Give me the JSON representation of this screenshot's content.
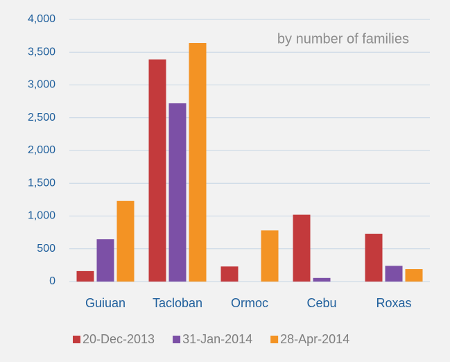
{
  "chart_data": {
    "type": "bar",
    "annotation": "by number of families",
    "categories": [
      "Guiuan",
      "Tacloban",
      "Ormoc",
      "Cebu",
      "Roxas"
    ],
    "series": [
      {
        "name": "20-Dec-2013",
        "color": "#c33a3c",
        "values": [
          160,
          3390,
          230,
          1020,
          730
        ]
      },
      {
        "name": "31-Jan-2014",
        "color": "#7c50a6",
        "values": [
          645,
          2720,
          0,
          55,
          240
        ]
      },
      {
        "name": "28-Apr-2014",
        "color": "#f39324",
        "values": [
          1230,
          3640,
          780,
          0,
          190
        ]
      }
    ],
    "ylim": [
      0,
      4000
    ],
    "yticks": [
      0,
      500,
      {
        "value": 1000,
        "label": "1,000"
      },
      {
        "value": 1500,
        "label": "1,500"
      },
      {
        "value": 2000,
        "label": "2,000"
      },
      {
        "value": 2500,
        "label": "2,500"
      },
      {
        "value": 3000,
        "label": "3,000"
      },
      {
        "value": 3500,
        "label": "3,500"
      },
      {
        "value": 4000,
        "label": "4,000"
      }
    ],
    "grid": true,
    "legend": "bottom"
  }
}
